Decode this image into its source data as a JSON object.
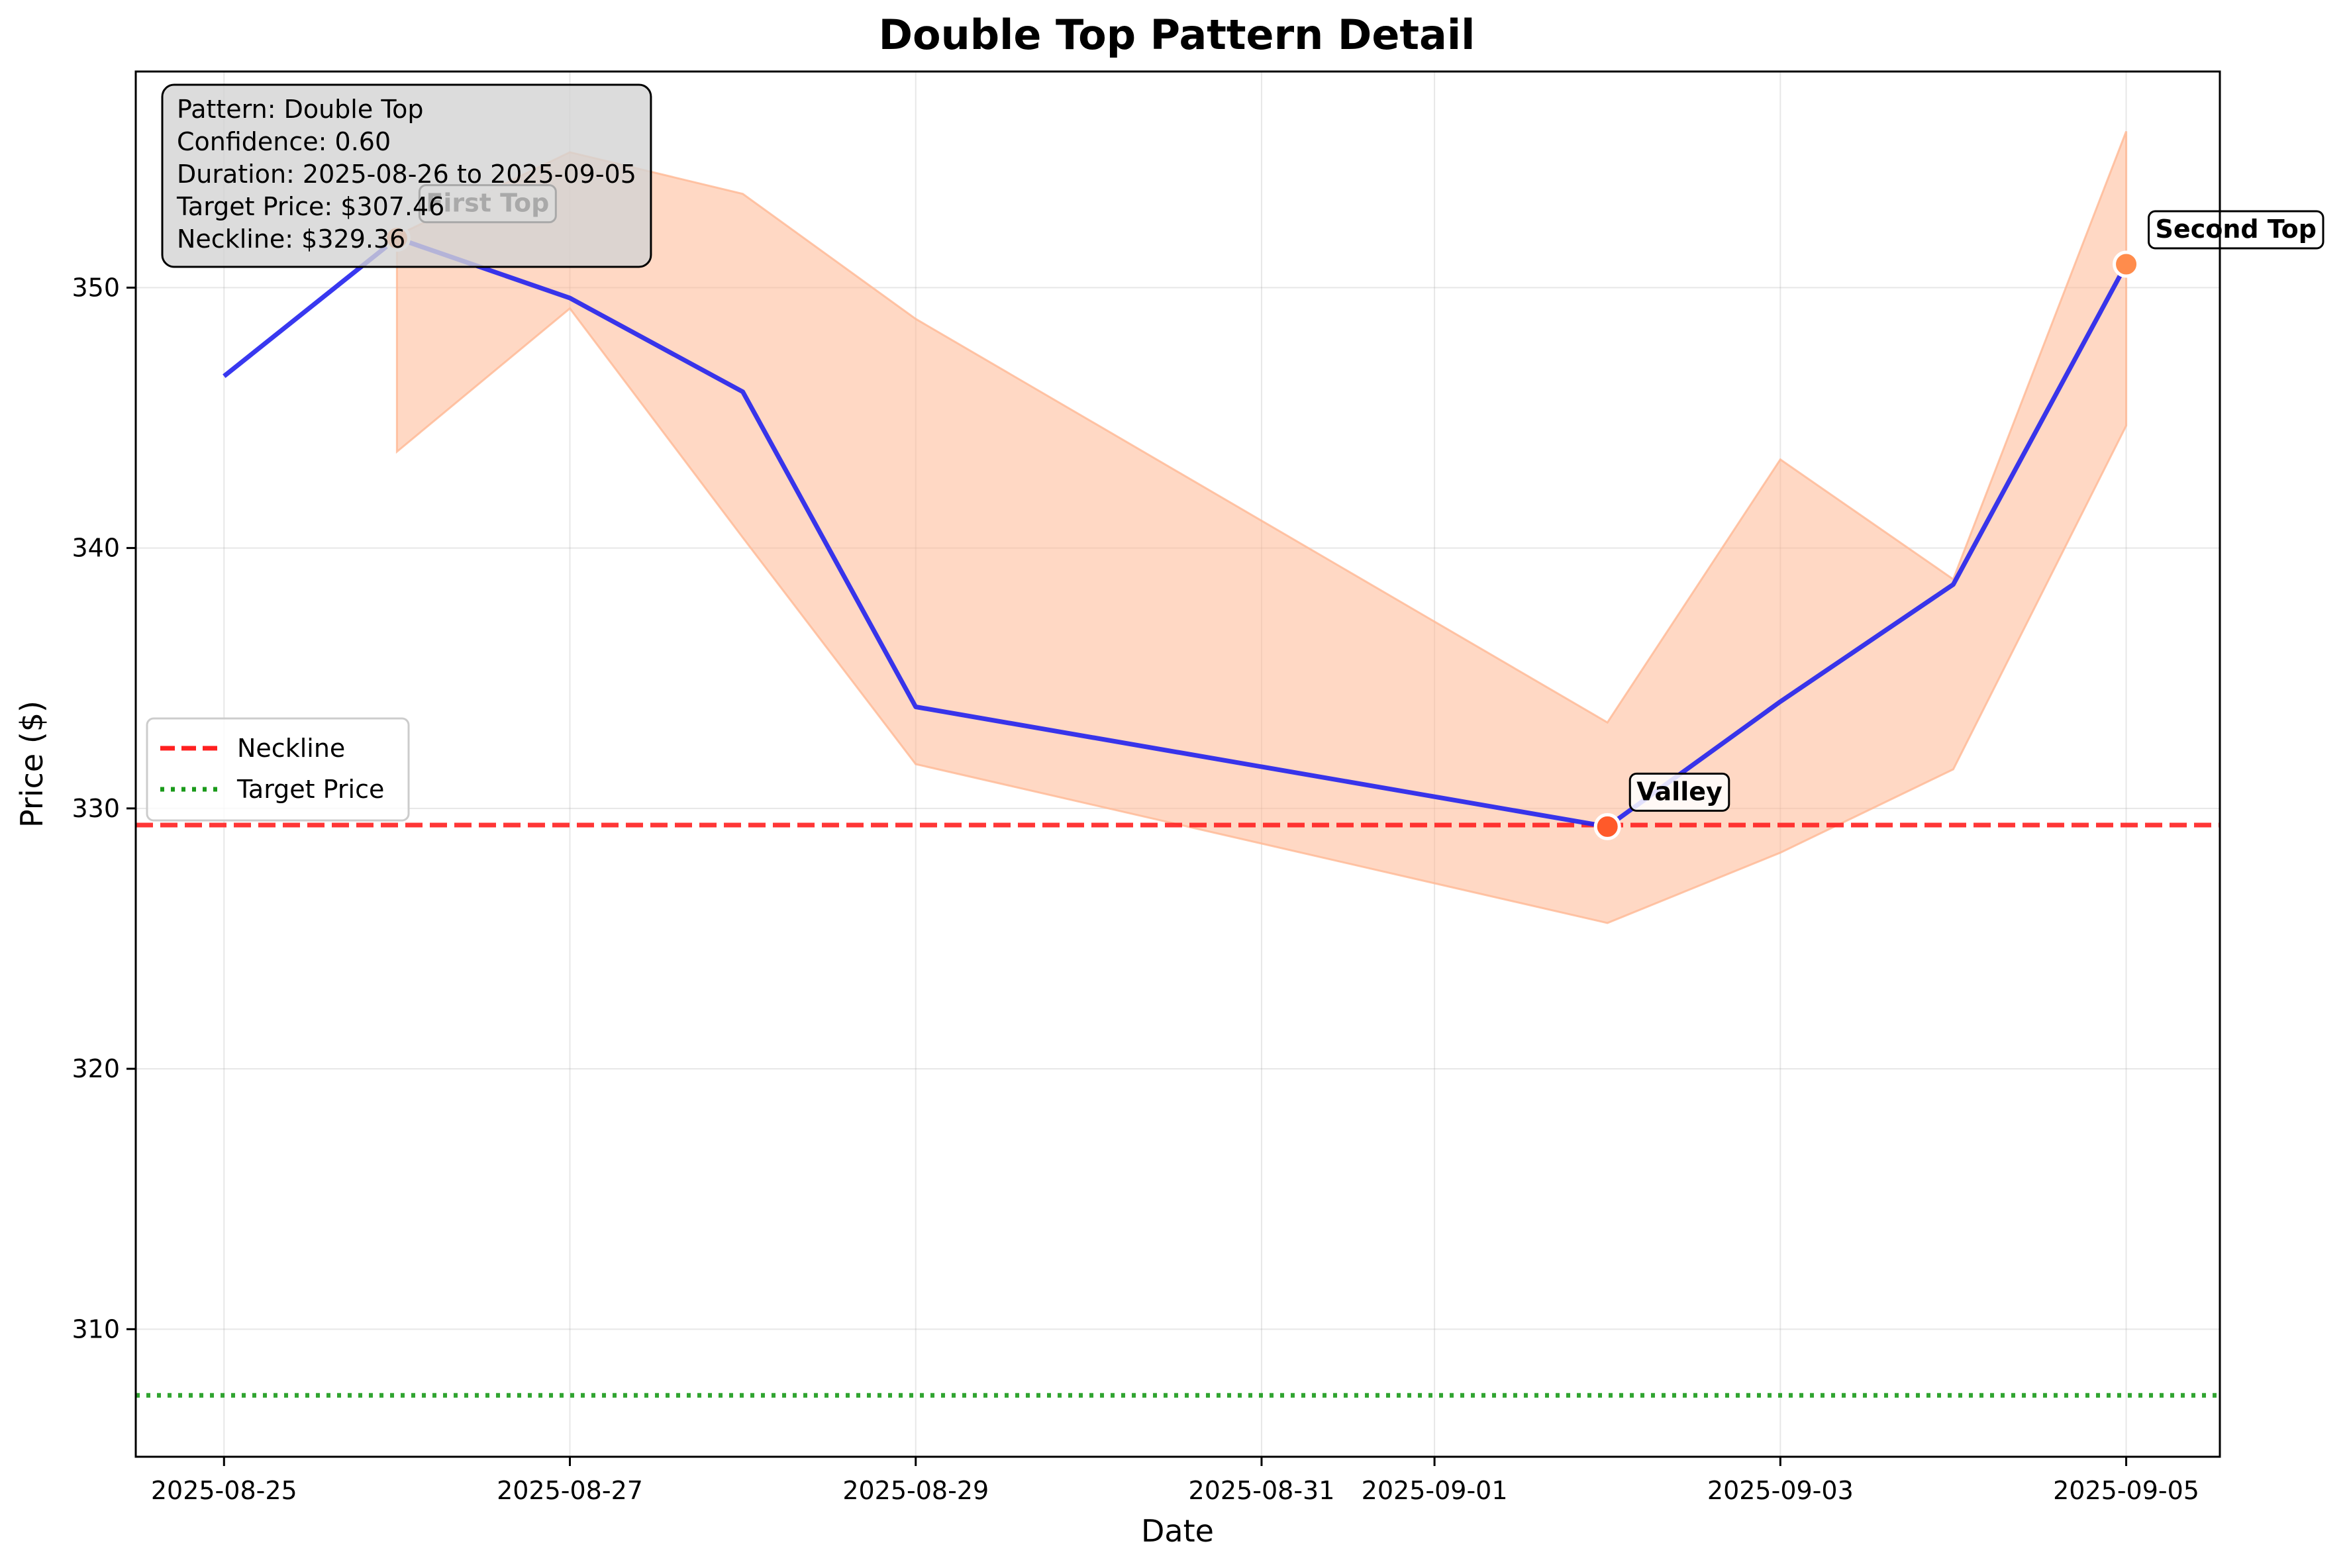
{
  "chart_data": {
    "type": "line",
    "title": "Double Top Pattern Detail",
    "xlabel": "Date",
    "ylabel": "Price ($)",
    "x_ticks": [
      "2025-08-25",
      "2025-08-27",
      "2025-08-29",
      "2025-08-31",
      "2025-09-01",
      "2025-09-03",
      "2025-09-05"
    ],
    "y_ticks": [
      310,
      320,
      330,
      340,
      350
    ],
    "xlim": [
      "2025-08-24T11:45",
      "2025-09-05T13:00"
    ],
    "ylim": [
      305.1,
      358.3
    ],
    "grid": true,
    "legend_position": "center-left",
    "series": [
      {
        "kind": "line",
        "color": "#2222ee",
        "points": [
          {
            "x": "2025-08-25",
            "y": 346.6
          },
          {
            "x": "2025-08-26",
            "y": 351.9
          },
          {
            "x": "2025-08-27",
            "y": 349.6
          },
          {
            "x": "2025-08-28",
            "y": 346.0
          },
          {
            "x": "2025-08-29",
            "y": 333.9
          },
          {
            "x": "2025-09-02",
            "y": 329.3
          },
          {
            "x": "2025-09-03",
            "y": 334.1
          },
          {
            "x": "2025-09-04",
            "y": 338.6
          },
          {
            "x": "2025-09-05",
            "y": 350.9
          }
        ]
      },
      {
        "name": "Neckline",
        "kind": "hline",
        "y": 329.36,
        "color": "#ff2020",
        "style": "dashed"
      },
      {
        "name": "Target Price",
        "kind": "hline",
        "y": 307.46,
        "color": "#1a9a1a",
        "style": "dotted"
      }
    ],
    "band": {
      "color": "#ffb894",
      "upper": [
        {
          "x": "2025-08-26",
          "y": 352.0
        },
        {
          "x": "2025-08-27",
          "y": 355.2
        },
        {
          "x": "2025-08-28",
          "y": 353.6
        },
        {
          "x": "2025-08-29",
          "y": 348.8
        },
        {
          "x": "2025-09-02",
          "y": 333.3
        },
        {
          "x": "2025-09-03",
          "y": 343.4
        },
        {
          "x": "2025-09-04",
          "y": 338.8
        },
        {
          "x": "2025-09-05",
          "y": 356.0
        }
      ],
      "lower": [
        {
          "x": "2025-08-26",
          "y": 343.7
        },
        {
          "x": "2025-08-27",
          "y": 349.2
        },
        {
          "x": "2025-08-28",
          "y": 340.4
        },
        {
          "x": "2025-08-29",
          "y": 331.7
        },
        {
          "x": "2025-09-02",
          "y": 325.6
        },
        {
          "x": "2025-09-03",
          "y": 328.3
        },
        {
          "x": "2025-09-04",
          "y": 331.5
        },
        {
          "x": "2025-09-05",
          "y": 344.7
        }
      ]
    },
    "markers": [
      {
        "label": "First Top",
        "x": "2025-08-26",
        "y": 351.9,
        "color": "#ff8c4c"
      },
      {
        "label": "Valley",
        "x": "2025-09-02",
        "y": 329.3,
        "color": "#ff5a2a"
      },
      {
        "label": "Second Top",
        "x": "2025-09-05",
        "y": 350.9,
        "color": "#ff8c4c"
      }
    ],
    "info_box": [
      "Pattern: Double Top",
      "Confidence: 0.60",
      "Duration: 2025-08-26 to 2025-09-05",
      "Target Price: $307.46",
      "Neckline: $329.36"
    ]
  }
}
